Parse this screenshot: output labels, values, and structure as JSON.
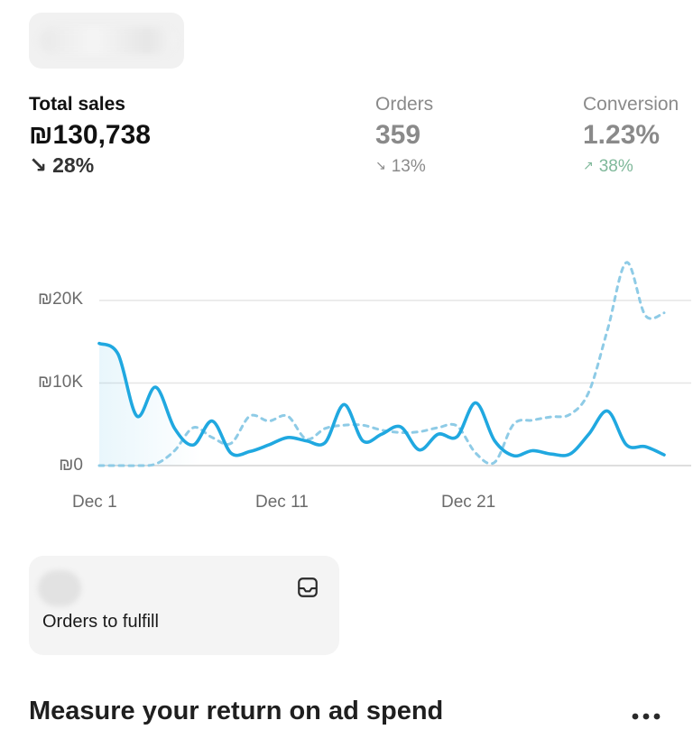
{
  "metrics": {
    "sales": {
      "label": "Total sales",
      "value": "₪130,738",
      "delta": "28%",
      "direction": "down"
    },
    "orders": {
      "label": "Orders",
      "value": "359",
      "delta": "13%",
      "direction": "down"
    },
    "conversion": {
      "label": "Conversion",
      "value": "1.23%",
      "delta": "38%",
      "direction": "up"
    }
  },
  "chart_data": {
    "type": "line",
    "x": [
      "Dec 1",
      "Dec 2",
      "Dec 3",
      "Dec 4",
      "Dec 5",
      "Dec 6",
      "Dec 7",
      "Dec 8",
      "Dec 9",
      "Dec 10",
      "Dec 11",
      "Dec 12",
      "Dec 13",
      "Dec 14",
      "Dec 15",
      "Dec 16",
      "Dec 17",
      "Dec 18",
      "Dec 19",
      "Dec 20",
      "Dec 21",
      "Dec 22",
      "Dec 23",
      "Dec 24",
      "Dec 25",
      "Dec 26",
      "Dec 27",
      "Dec 28",
      "Dec 29",
      "Dec 30",
      "Dec 31"
    ],
    "x_tick_labels": [
      "Dec 1",
      "Dec 11",
      "Dec 21"
    ],
    "y_tick_labels": [
      "₪0",
      "₪10K",
      "₪20K"
    ],
    "ylim": [
      0,
      20000
    ],
    "grid": true,
    "series": [
      {
        "style": "solid",
        "color": "#20a8e0",
        "values": [
          14800,
          13500,
          6000,
          9500,
          4500,
          2500,
          5400,
          1500,
          1700,
          2500,
          3400,
          3000,
          2800,
          7400,
          3000,
          3800,
          4700,
          1900,
          3800,
          3500,
          7600,
          3000,
          1200,
          1800,
          1400,
          1400,
          3800,
          6600,
          2500,
          2300,
          1300
        ]
      },
      {
        "style": "dashed",
        "color": "#8ecbe6",
        "values": [
          0,
          0,
          0,
          200,
          1800,
          4600,
          3400,
          2700,
          6000,
          5400,
          6000,
          3200,
          4500,
          4900,
          4900,
          4300,
          4000,
          4100,
          4600,
          4800,
          1500,
          400,
          5000,
          5500,
          5900,
          6200,
          8900,
          16500,
          24600,
          18200,
          18500
        ]
      }
    ]
  },
  "fulfill": {
    "title": "Orders to fulfill",
    "icon": "inbox-icon"
  },
  "roas": {
    "title": "Measure your return on ad spend",
    "icon": "more-horizontal-icon"
  }
}
